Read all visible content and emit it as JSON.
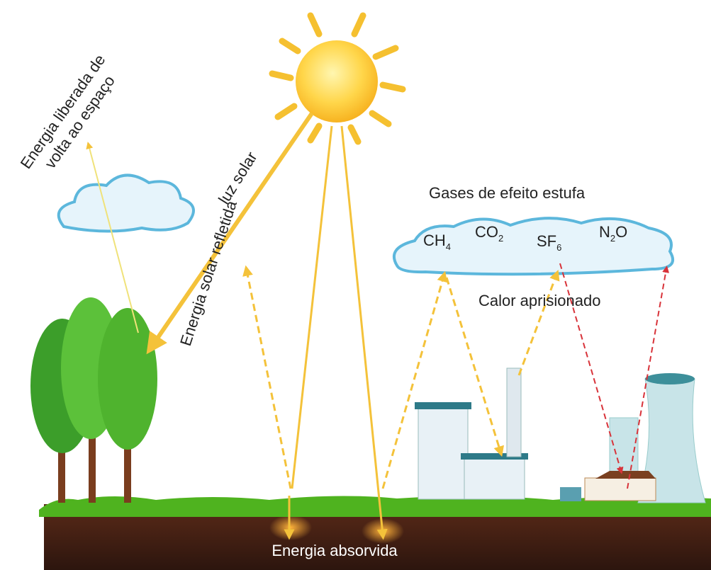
{
  "labels": {
    "space": [
      "Energia liberada de",
      "volta ao espaço"
    ],
    "sunlight": "luz solar",
    "reflected": "Energia solar refletida",
    "gases_title": "Gases de efeito estufa",
    "gases": [
      {
        "base": "CH",
        "sub": "4"
      },
      {
        "base": "CO",
        "sub": "2"
      },
      {
        "base": "SF",
        "sub": "6"
      },
      {
        "base": "N",
        "sub": "2",
        "tail": "O"
      }
    ],
    "trapped": "Calor aprisionado",
    "absorbed": "Energia absorvida"
  }
}
